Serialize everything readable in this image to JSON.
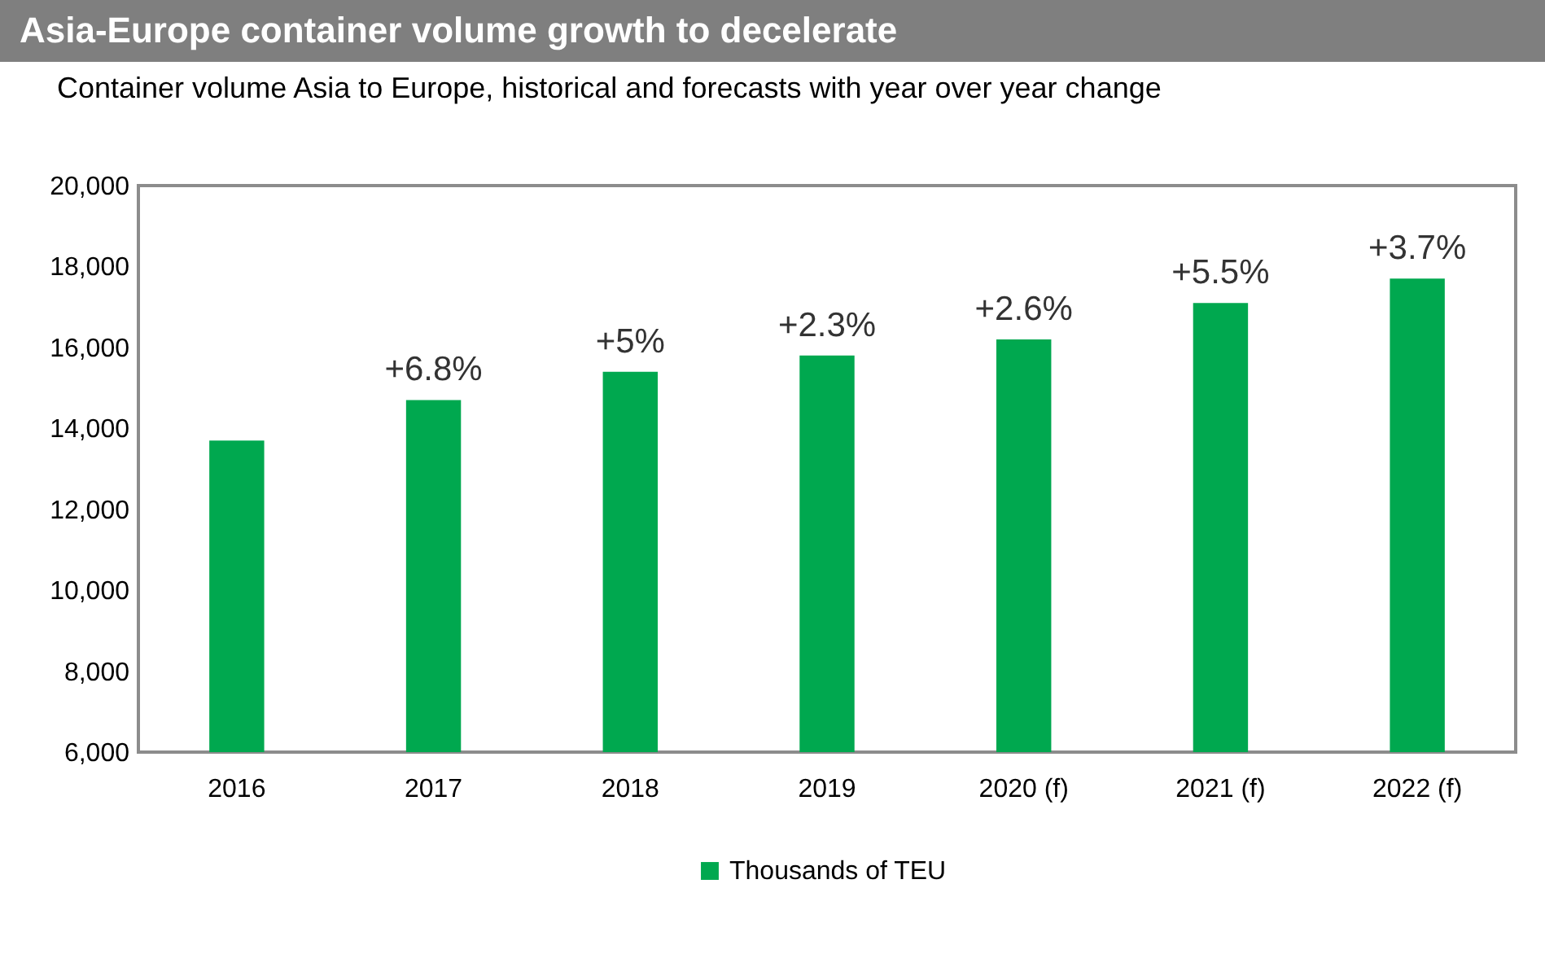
{
  "chart_data": {
    "type": "bar",
    "title": "Asia-Europe container volume growth to decelerate",
    "subtitle": "Container volume Asia to Europe, historical and forecasts with year over year change",
    "categories": [
      "2016",
      "2017",
      "2018",
      "2019",
      "2020  (f)",
      "2021 (f)",
      "2022 (f)"
    ],
    "series": [
      {
        "name": "Thousands of TEU",
        "color": "#00a84f",
        "values": [
          13700,
          14700,
          15400,
          15800,
          16200,
          17100,
          17700
        ]
      }
    ],
    "value_labels": [
      null,
      "+6.8%",
      "+5%",
      "+2.3%",
      "+2.6%",
      "+5.5%",
      "+3.7%"
    ],
    "ylim": [
      6000,
      20000
    ],
    "yticks": [
      {
        "value": 6000,
        "label": "6,000"
      },
      {
        "value": 8000,
        "label": "8,000"
      },
      {
        "value": 10000,
        "label": "10,000"
      },
      {
        "value": 12000,
        "label": "12,000"
      },
      {
        "value": 14000,
        "label": "14,000"
      },
      {
        "value": 16000,
        "label": "16,000"
      },
      {
        "value": 18000,
        "label": "18,000"
      },
      {
        "value": 20000,
        "label": "20,000"
      }
    ],
    "legend": "bottom"
  }
}
